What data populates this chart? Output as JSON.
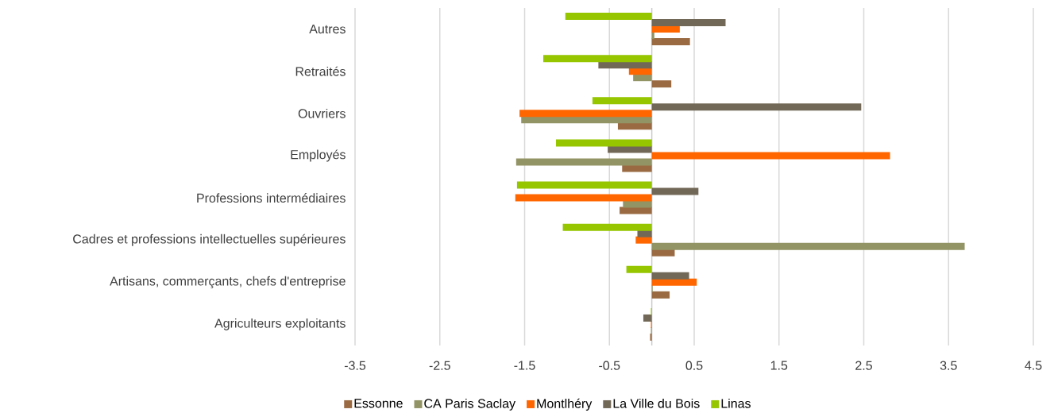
{
  "chart_data": {
    "type": "bar",
    "orientation": "horizontal",
    "categories": [
      "Autres",
      "Retraités",
      "Ouvriers",
      "Employés",
      "Professions intermédiaires",
      "Cadres et professions intellectuelles supérieures",
      "Artisans, commerçants, chefs d'entreprise",
      "Agriculteurs exploitants"
    ],
    "series": [
      {
        "name": "Essonne",
        "color": "#9a6b43",
        "values": [
          0.45,
          0.23,
          -0.4,
          -0.35,
          -0.38,
          0.27,
          0.21,
          -0.02
        ]
      },
      {
        "name": "CA Paris Saclay",
        "color": "#939465",
        "values": [
          0.03,
          -0.22,
          -1.54,
          -1.6,
          -0.34,
          3.69,
          0.01,
          -0.01
        ]
      },
      {
        "name": "Montlhéry",
        "color": "#ff6600",
        "values": [
          0.33,
          -0.27,
          -1.56,
          2.81,
          -1.61,
          -0.19,
          0.53,
          -0.01
        ]
      },
      {
        "name": "La Ville du Bois",
        "color": "#726857",
        "values": [
          0.87,
          -0.63,
          2.47,
          -0.52,
          0.55,
          -0.17,
          0.44,
          -0.1
        ]
      },
      {
        "name": "Linas",
        "color": "#95c600",
        "values": [
          -1.02,
          -1.28,
          -0.7,
          -1.13,
          -1.59,
          -1.05,
          -0.3,
          -0.01
        ]
      }
    ],
    "xlim": [
      -3.5,
      4.5
    ],
    "xticks": [
      -3.5,
      -2.5,
      -1.5,
      -0.5,
      0.5,
      1.5,
      2.5,
      3.5,
      4.5
    ],
    "grid": "x",
    "legend": "bottom"
  }
}
